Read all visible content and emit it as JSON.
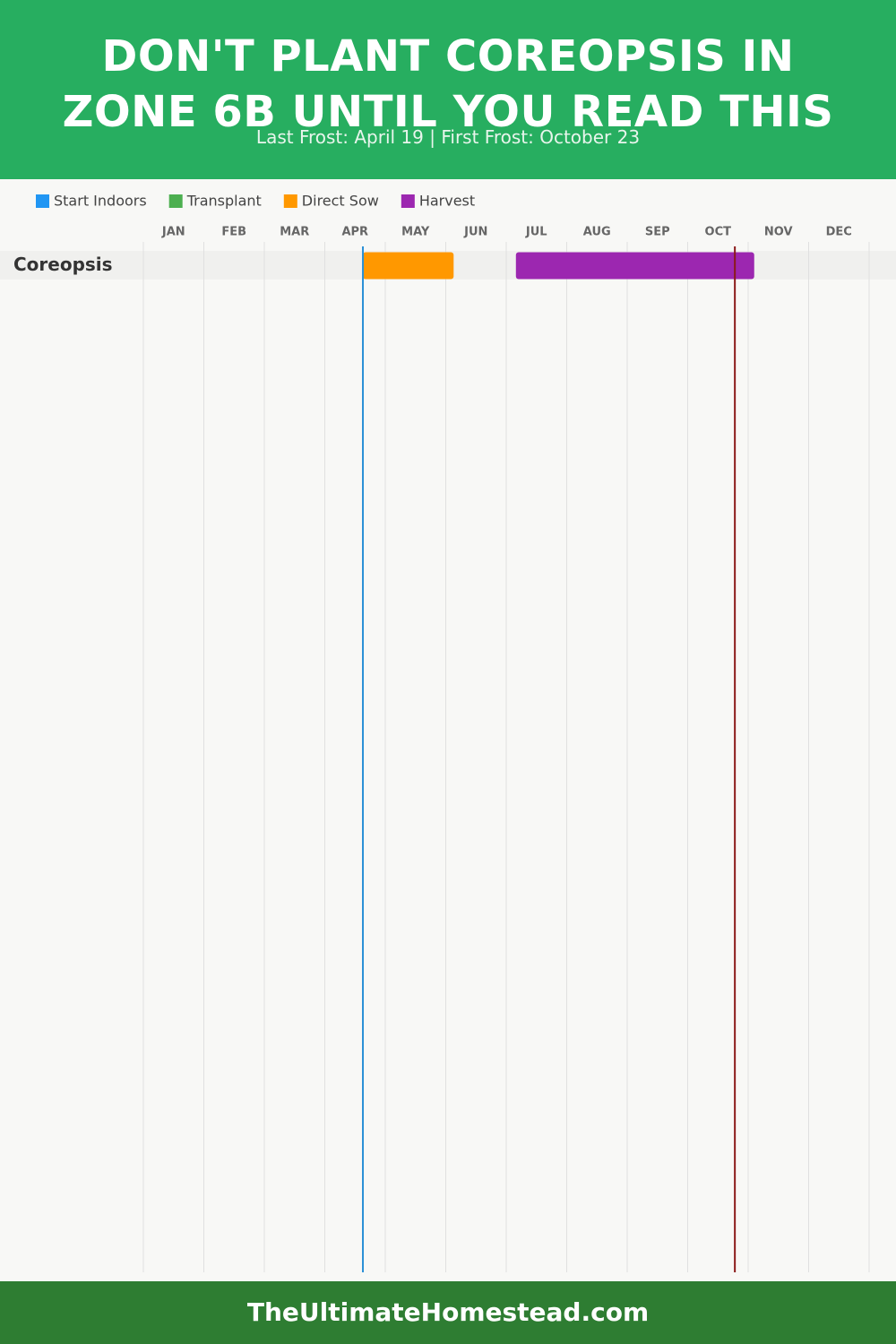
{
  "chart_data": {
    "type": "gantt",
    "title": "DON'T PLANT COREOPSIS IN ZONE 6B UNTIL YOU READ THIS",
    "subtitle": "Last Frost: April 19 | First Frost: October 23",
    "xlim": [
      0,
      12
    ],
    "xticks": [
      {
        "value": 0.5,
        "label": "JAN"
      },
      {
        "value": 1.5,
        "label": "FEB"
      },
      {
        "value": 2.5,
        "label": "MAR"
      },
      {
        "value": 3.5,
        "label": "APR"
      },
      {
        "value": 4.5,
        "label": "MAY"
      },
      {
        "value": 5.5,
        "label": "JUN"
      },
      {
        "value": 6.5,
        "label": "JUL"
      },
      {
        "value": 7.5,
        "label": "AUG"
      },
      {
        "value": 8.5,
        "label": "SEP"
      },
      {
        "value": 9.5,
        "label": "OCT"
      },
      {
        "value": 10.5,
        "label": "NOV"
      },
      {
        "value": 11.5,
        "label": "DEC"
      }
    ],
    "grid": true,
    "rows": [
      "Coreopsis"
    ],
    "series": [
      {
        "name": "Start Indoors",
        "color": "#2196f3",
        "values": [
          null
        ]
      },
      {
        "name": "Transplant",
        "color": "#4caf50",
        "values": [
          null
        ]
      },
      {
        "name": "Direct Sow",
        "color": "#ff9800",
        "values": [
          [
            3.63,
            5.13
          ]
        ]
      },
      {
        "name": "Harvest",
        "color": "#9c27b0",
        "values": [
          [
            6.16,
            10.1
          ]
        ]
      }
    ],
    "markers": [
      {
        "value": 3.63,
        "color": "#2a8fd6"
      },
      {
        "value": 9.78,
        "color": "#8b1a1a"
      }
    ]
  },
  "footer": "TheUltimateHomestead.com"
}
